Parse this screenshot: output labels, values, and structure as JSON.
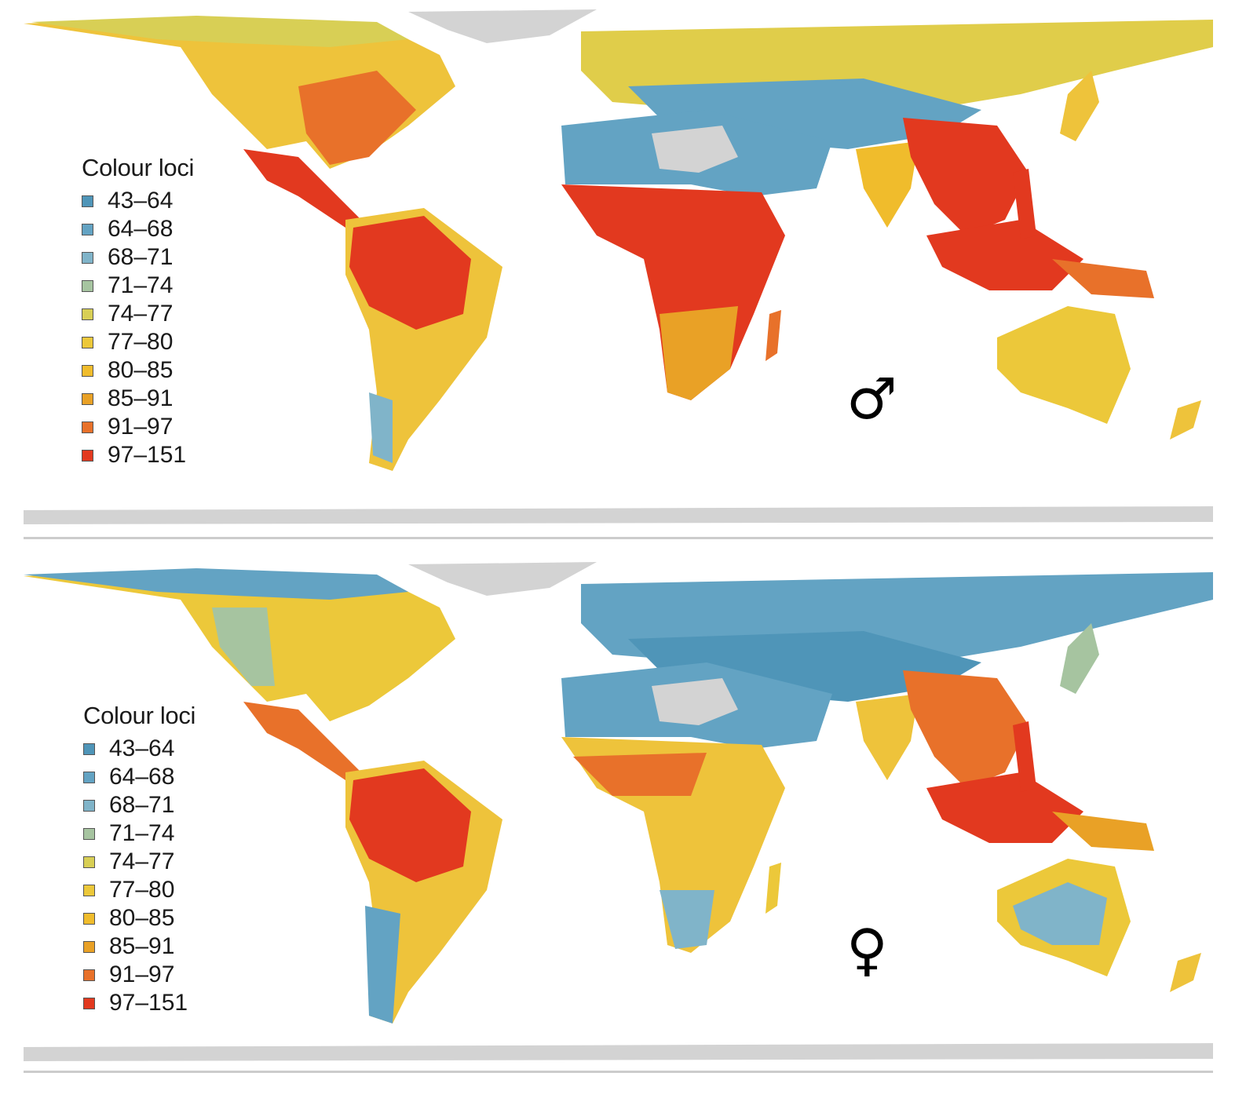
{
  "colors": {
    "bin_43_64": "#4f95b8",
    "bin_64_68": "#63a3c3",
    "bin_68_71": "#80b4c9",
    "bin_71_74": "#a6c4a0",
    "bin_74_77": "#d8cf55",
    "bin_77_80": "#ecc83a",
    "bin_80_85": "#f0bc2c",
    "bin_85_91": "#e9a126",
    "bin_91_97": "#e8712a",
    "bin_97_151": "#e2391f",
    "no_data": "#d3d3d3",
    "background": "#ffffff"
  },
  "panels": [
    {
      "id": "male",
      "symbol": "♂",
      "legend": {
        "title": "Colour loci",
        "items": [
          "43–64",
          "64–68",
          "68–71",
          "71–74",
          "74–77",
          "77–80",
          "80–85",
          "85–91",
          "91–97",
          "97–151"
        ]
      }
    },
    {
      "id": "female",
      "symbol": "♀",
      "legend": {
        "title": "Colour loci",
        "items": [
          "43–64",
          "64–68",
          "68–71",
          "71–74",
          "74–77",
          "77–80",
          "80–85",
          "85–91",
          "91–97",
          "97–151"
        ]
      }
    }
  ]
}
